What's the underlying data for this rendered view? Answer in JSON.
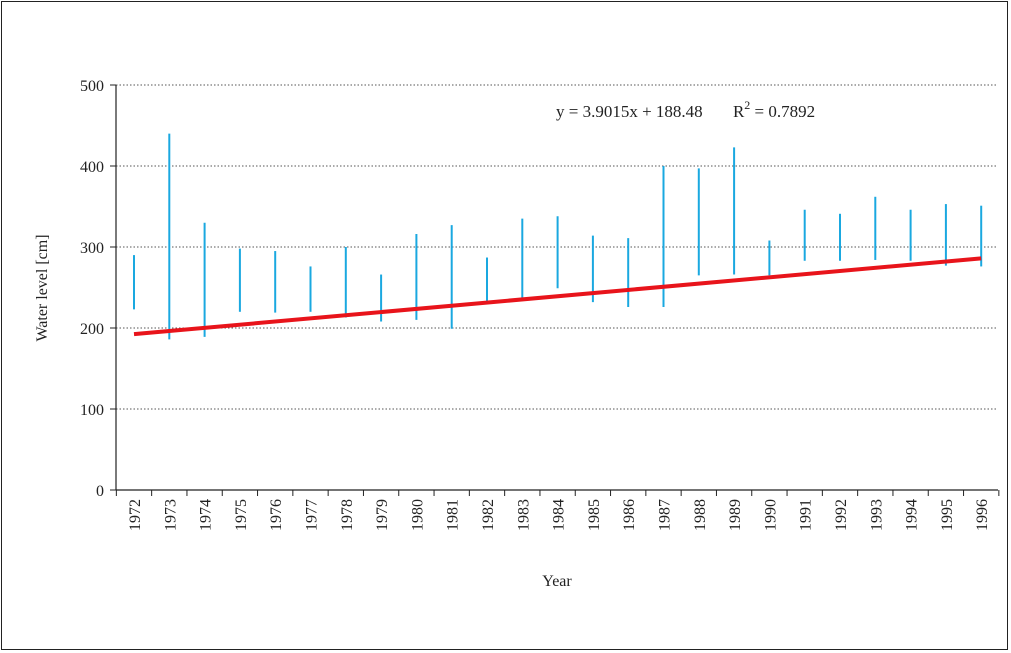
{
  "chart_data": {
    "type": "range-bar",
    "xlabel": "Year",
    "ylabel": "Water level [cm]",
    "ylim": [
      0,
      500
    ],
    "yticks": [
      "0",
      "100",
      "200",
      "300",
      "400",
      "500"
    ],
    "grid": "horizontal dotted",
    "series": [
      {
        "name": "",
        "color": "#1aa8e0",
        "points": [
          {
            "x": "1972",
            "min": 223,
            "max": 290
          },
          {
            "x": "1973",
            "min": 186,
            "max": 440
          },
          {
            "x": "1974",
            "min": 189,
            "max": 330
          },
          {
            "x": "1975",
            "min": 220,
            "max": 298
          },
          {
            "x": "1976",
            "min": 219,
            "max": 295
          },
          {
            "x": "1977",
            "min": 220,
            "max": 276
          },
          {
            "x": "1978",
            "min": 213,
            "max": 300
          },
          {
            "x": "1979",
            "min": 208,
            "max": 266
          },
          {
            "x": "1980",
            "min": 210,
            "max": 316
          },
          {
            "x": "1981",
            "min": 199,
            "max": 327
          },
          {
            "x": "1982",
            "min": 233,
            "max": 287
          },
          {
            "x": "1983",
            "min": 235,
            "max": 335
          },
          {
            "x": "1984",
            "min": 249,
            "max": 338
          },
          {
            "x": "1985",
            "min": 232,
            "max": 314
          },
          {
            "x": "1986",
            "min": 226,
            "max": 311
          },
          {
            "x": "1987",
            "min": 226,
            "max": 400
          },
          {
            "x": "1988",
            "min": 265,
            "max": 397
          },
          {
            "x": "1989",
            "min": 266,
            "max": 423
          },
          {
            "x": "1990",
            "min": 265,
            "max": 308
          },
          {
            "x": "1991",
            "min": 283,
            "max": 346
          },
          {
            "x": "1992",
            "min": 283,
            "max": 341
          },
          {
            "x": "1993",
            "min": 284,
            "max": 362
          },
          {
            "x": "1994",
            "min": 283,
            "max": 346
          },
          {
            "x": "1995",
            "min": 277,
            "max": 353
          },
          {
            "x": "1996",
            "min": 276,
            "max": 351
          }
        ]
      }
    ],
    "trendline": {
      "slope": 3.9015,
      "intercept": 188.48,
      "color": "#e8141b",
      "equation": "y = 3.9015x + 188.48",
      "r2_label": "R",
      "r2_sup": "2",
      "r2_value": " = 0.7892"
    }
  }
}
